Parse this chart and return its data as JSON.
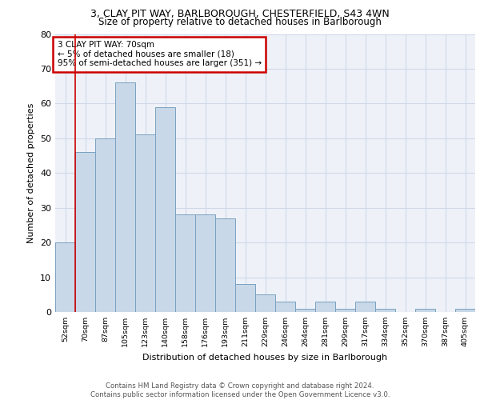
{
  "title_line1": "3, CLAY PIT WAY, BARLBOROUGH, CHESTERFIELD, S43 4WN",
  "title_line2": "Size of property relative to detached houses in Barlborough",
  "xlabel": "Distribution of detached houses by size in Barlborough",
  "ylabel": "Number of detached properties",
  "bar_labels": [
    "52sqm",
    "70sqm",
    "87sqm",
    "105sqm",
    "123sqm",
    "140sqm",
    "158sqm",
    "176sqm",
    "193sqm",
    "211sqm",
    "229sqm",
    "246sqm",
    "264sqm",
    "281sqm",
    "299sqm",
    "317sqm",
    "334sqm",
    "352sqm",
    "370sqm",
    "387sqm",
    "405sqm"
  ],
  "bar_values": [
    20,
    46,
    50,
    66,
    51,
    59,
    28,
    28,
    27,
    8,
    5,
    3,
    1,
    3,
    1,
    3,
    1,
    0,
    1,
    0,
    1
  ],
  "bar_color": "#c8d8e8",
  "bar_edge_color": "#7aa0c0",
  "annotation_box_text": "3 CLAY PIT WAY: 70sqm\n← 5% of detached houses are smaller (18)\n95% of semi-detached houses are larger (351) →",
  "annotation_box_color": "#cc0000",
  "vline_bar_index": 1,
  "vline_color": "#cc0000",
  "ylim": [
    0,
    80
  ],
  "yticks": [
    0,
    10,
    20,
    30,
    40,
    50,
    60,
    70,
    80
  ],
  "grid_color": "#d0d8e8",
  "background_color": "#eef2f8",
  "footer_text": "Contains HM Land Registry data © Crown copyright and database right 2024.\nContains public sector information licensed under the Open Government Licence v3.0."
}
